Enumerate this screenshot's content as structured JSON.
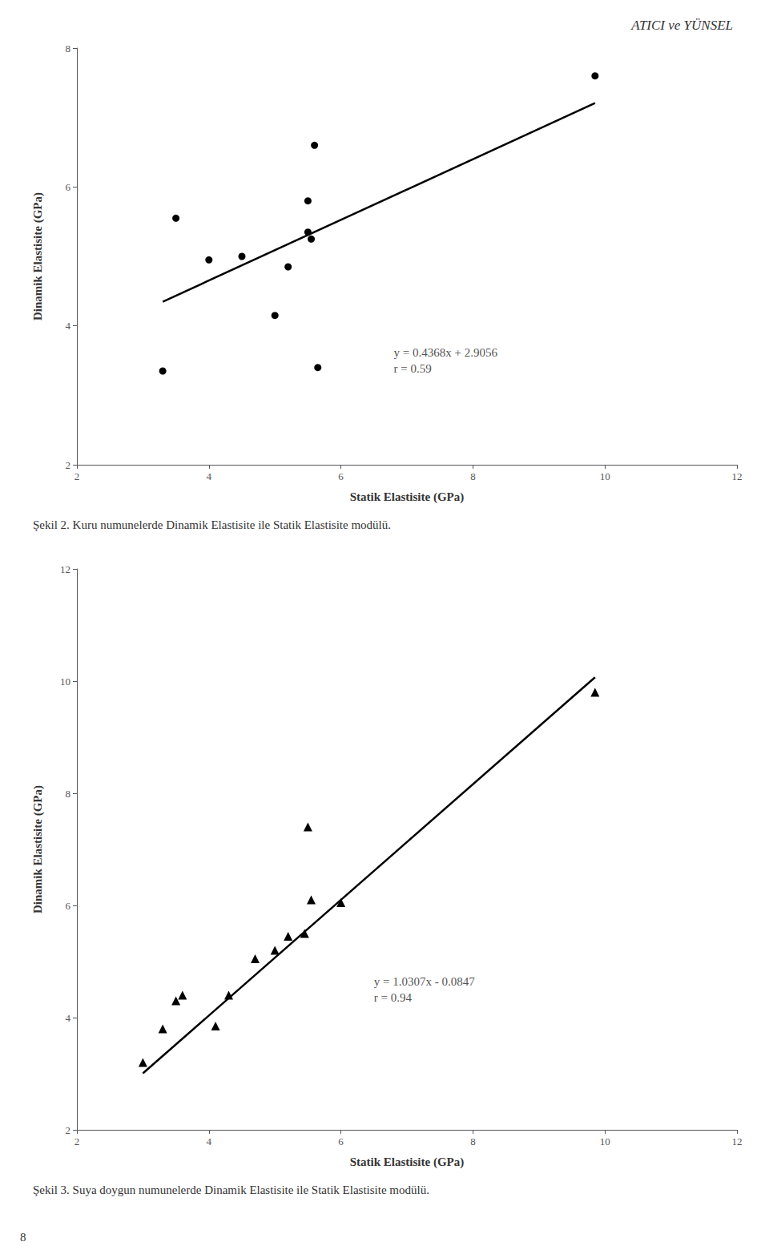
{
  "header": "ATICI ve YÜNSEL",
  "page_number": "8",
  "chart_data": [
    {
      "type": "scatter",
      "title": "Şekil 2. Kuru numunelerde Dinamik Elastisite ile Statik Elastisite modülü.",
      "x_label": "Statik Elastisite (GPa)",
      "y_label": "Dinamik Elastisite (GPa)",
      "series": [
        {
          "type": "scatter",
          "marker": "circle",
          "color": "#000000",
          "x": [
            3.3,
            3.5,
            4.0,
            4.5,
            5.0,
            5.2,
            5.5,
            5.5,
            5.55,
            5.6,
            5.65,
            9.85
          ],
          "values": [
            3.35,
            5.55,
            4.95,
            5.0,
            4.15,
            4.85,
            5.35,
            5.8,
            5.25,
            6.6,
            3.4,
            7.6
          ]
        },
        {
          "type": "line",
          "line_style": "solid",
          "color": "#000000",
          "x": [
            3.3,
            9.85
          ],
          "values": [
            4.34704,
            7.20808
          ]
        }
      ],
      "annotations": [
        {
          "text": "y = 0.4368x + 2.9056\nr = 0.59",
          "x": 6.8,
          "y": 3.5
        }
      ],
      "xlim": [
        2,
        12
      ],
      "ylim": [
        2,
        8
      ],
      "xticks": [
        2,
        4,
        6,
        8,
        10,
        12
      ],
      "yticks": [
        2,
        4,
        6,
        8
      ],
      "grid": false
    },
    {
      "type": "scatter",
      "title": "Şekil 3. Suya doygun numunelerde Dinamik Elastisite ile Statik Elastisite modülü.",
      "x_label": "Statik Elastisite (GPa)",
      "y_label": "Dinamik Elastisite (GPa)",
      "series": [
        {
          "type": "scatter",
          "marker": "triangle",
          "color": "#000000",
          "x": [
            3.0,
            3.3,
            3.5,
            3.6,
            4.1,
            4.3,
            4.7,
            5.0,
            5.2,
            5.45,
            5.5,
            5.55,
            6.0,
            9.85
          ],
          "values": [
            3.2,
            3.8,
            4.3,
            4.4,
            3.85,
            4.4,
            5.05,
            5.2,
            5.45,
            5.5,
            7.4,
            6.1,
            6.05,
            9.8
          ]
        },
        {
          "type": "line",
          "line_style": "solid",
          "color": "#000000",
          "x": [
            3.0,
            9.85
          ],
          "values": [
            3.0074,
            10.067695
          ]
        }
      ],
      "annotations": [
        {
          "text": "y = 1.0307x - 0.0847\nr = 0.94",
          "x": 6.5,
          "y": 4.5
        }
      ],
      "xlim": [
        2,
        12
      ],
      "ylim": [
        2,
        12
      ],
      "xticks": [
        2,
        4,
        6,
        8,
        10,
        12
      ],
      "yticks": [
        2,
        4,
        6,
        8,
        10,
        12
      ],
      "grid": false
    }
  ]
}
